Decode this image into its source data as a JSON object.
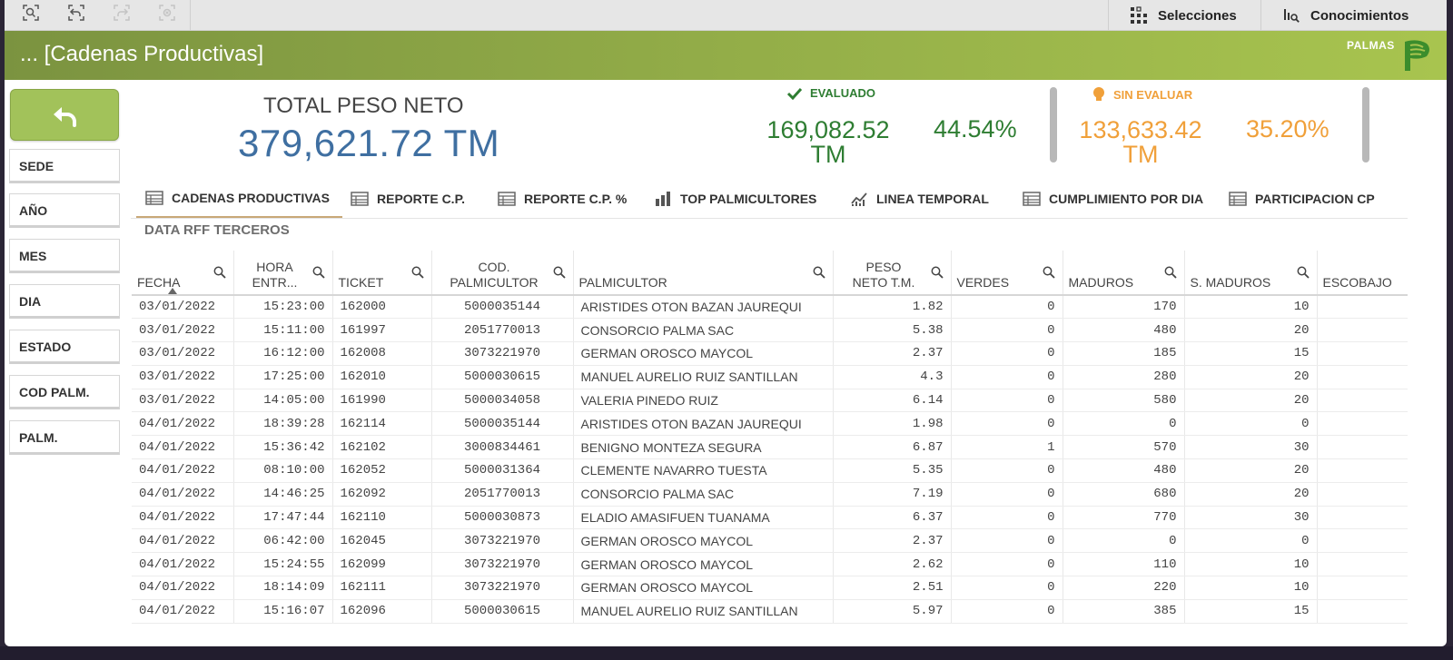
{
  "toolbar": {
    "buttons": [
      "smart-search",
      "step-back",
      "step-forward",
      "clear-selections"
    ],
    "selections_label": "Selecciones",
    "insights_label": "Conocimientos"
  },
  "header": {
    "title": "... [Cadenas Productivas]",
    "logo_text": "PALMAS"
  },
  "sidebar": {
    "filters": [
      "SEDE",
      "AÑO",
      "MES",
      "DIA",
      "ESTADO",
      "COD PALM.",
      "PALM."
    ]
  },
  "kpi": {
    "total_label": "TOTAL PESO NETO",
    "total_value": "379,621.72 TM",
    "evaluado": {
      "label": "EVALUADO",
      "value_line1": "169,082.52",
      "value_line2": "TM",
      "pct": "44.54%",
      "color": "#2e7d32"
    },
    "sin_evaluar": {
      "label": "SIN EVALUAR",
      "value_line1": "133,633.42",
      "value_line2": "TM",
      "pct": "35.20%",
      "color": "#f0a03a"
    }
  },
  "tabs": [
    {
      "label": "CADENAS PRODUCTIVAS",
      "icon": "table-icon",
      "active": true
    },
    {
      "label": "REPORTE C.P.",
      "icon": "table-icon"
    },
    {
      "label": "REPORTE C.P. %",
      "icon": "table-icon"
    },
    {
      "label": "TOP PALMICULTORES",
      "icon": "bar-chart-icon"
    },
    {
      "label": "LINEA TEMPORAL",
      "icon": "line-chart-icon"
    },
    {
      "label": "CUMPLIMIENTO POR DIA",
      "icon": "table-icon"
    },
    {
      "label": "PARTICIPACION CP",
      "icon": "table-icon"
    }
  ],
  "table": {
    "title": "DATA RFF TERCEROS",
    "columns": [
      [
        "FECHA"
      ],
      [
        "HORA",
        "ENTR..."
      ],
      [
        "TICKET"
      ],
      [
        "COD.",
        "PALMICULTOR"
      ],
      [
        "PALMICULTOR"
      ],
      [
        "PESO",
        "NETO T.M."
      ],
      [
        "VERDES"
      ],
      [
        "MADUROS"
      ],
      [
        "S. MADUROS"
      ],
      [
        "ESCOBAJO"
      ]
    ],
    "rows": [
      [
        "03/01/2022",
        "15:23:00",
        "162000",
        "5000035144",
        "ARISTIDES OTON BAZAN JAUREQUI",
        "1.82",
        "0",
        "170",
        "10",
        ""
      ],
      [
        "03/01/2022",
        "15:11:00",
        "161997",
        "2051770013",
        "CONSORCIO PALMA SAC",
        "5.38",
        "0",
        "480",
        "20",
        ""
      ],
      [
        "03/01/2022",
        "16:12:00",
        "162008",
        "3073221970",
        "GERMAN OROSCO MAYCOL",
        "2.37",
        "0",
        "185",
        "15",
        ""
      ],
      [
        "03/01/2022",
        "17:25:00",
        "162010",
        "5000030615",
        "MANUEL AURELIO RUIZ SANTILLAN",
        "4.3",
        "0",
        "280",
        "20",
        ""
      ],
      [
        "03/01/2022",
        "14:05:00",
        "161990",
        "5000034058",
        "VALERIA PINEDO RUIZ",
        "6.14",
        "0",
        "580",
        "20",
        ""
      ],
      [
        "04/01/2022",
        "18:39:28",
        "162114",
        "5000035144",
        "ARISTIDES OTON BAZAN JAUREQUI",
        "1.98",
        "0",
        "0",
        "0",
        ""
      ],
      [
        "04/01/2022",
        "15:36:42",
        "162102",
        "3000834461",
        "BENIGNO MONTEZA SEGURA",
        "6.87",
        "1",
        "570",
        "30",
        ""
      ],
      [
        "04/01/2022",
        "08:10:00",
        "162052",
        "5000031364",
        "CLEMENTE NAVARRO TUESTA",
        "5.35",
        "0",
        "480",
        "20",
        ""
      ],
      [
        "04/01/2022",
        "14:46:25",
        "162092",
        "2051770013",
        "CONSORCIO PALMA SAC",
        "7.19",
        "0",
        "680",
        "20",
        ""
      ],
      [
        "04/01/2022",
        "17:47:44",
        "162110",
        "5000030873",
        "ELADIO AMASIFUEN TUANAMA",
        "6.37",
        "0",
        "770",
        "30",
        ""
      ],
      [
        "04/01/2022",
        "06:42:00",
        "162045",
        "3073221970",
        "GERMAN OROSCO MAYCOL",
        "2.37",
        "0",
        "0",
        "0",
        ""
      ],
      [
        "04/01/2022",
        "15:24:55",
        "162099",
        "3073221970",
        "GERMAN OROSCO MAYCOL",
        "2.62",
        "0",
        "110",
        "10",
        ""
      ],
      [
        "04/01/2022",
        "18:14:09",
        "162111",
        "3073221970",
        "GERMAN OROSCO MAYCOL",
        "2.51",
        "0",
        "220",
        "10",
        ""
      ],
      [
        "04/01/2022",
        "15:16:07",
        "162096",
        "5000030615",
        "MANUEL AURELIO RUIZ SANTILLAN",
        "5.97",
        "0",
        "385",
        "15",
        ""
      ]
    ]
  }
}
